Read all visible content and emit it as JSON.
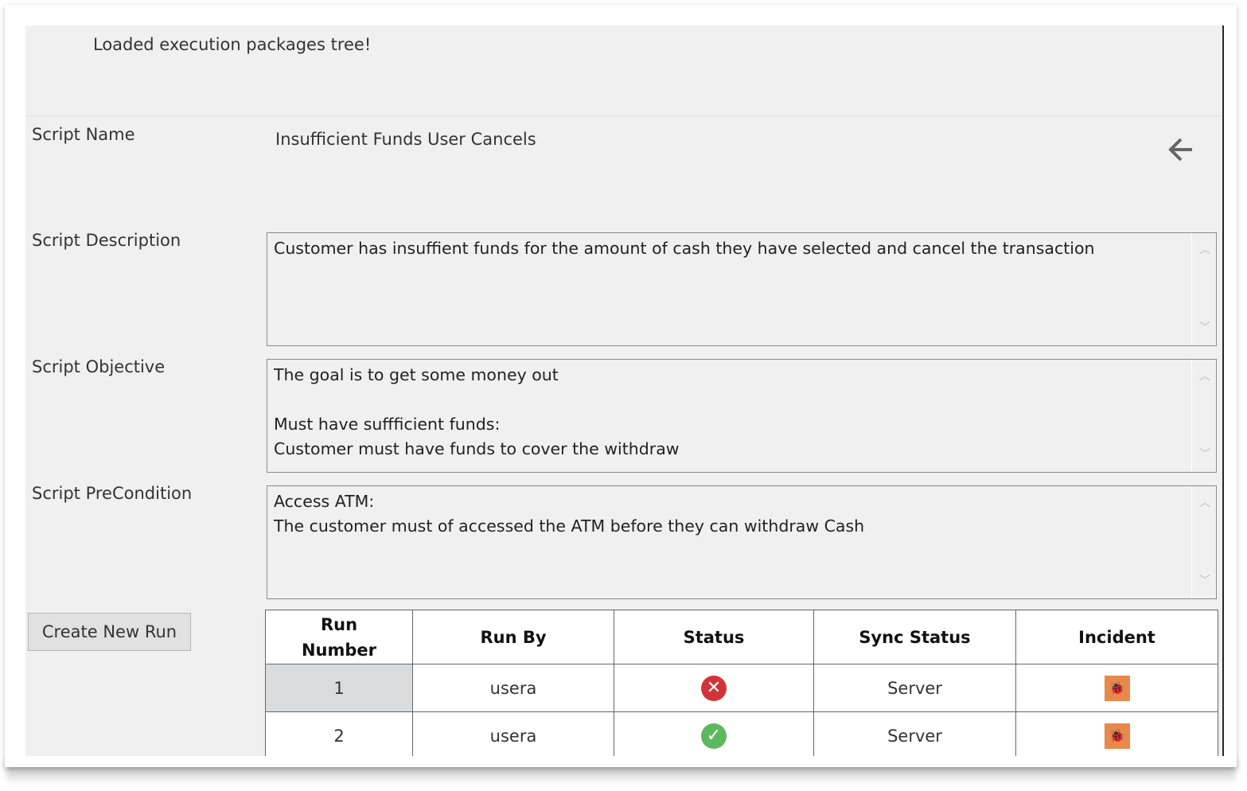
{
  "status_message": "Loaded execution packages tree!",
  "fields": {
    "name_label": "Script Name",
    "name_value": "Insufficient Funds User Cancels",
    "description_label": "Script Description",
    "description_value": "Customer has insuffient funds for the amount of cash they have selected and cancel the transaction",
    "objective_label": "Script Objective",
    "objective_value": "The goal is to get some money out\n\nMust have suffficient funds:\nCustomer must have funds to cover the withdraw",
    "precondition_label": "Script PreCondition",
    "precondition_value": "Access ATM:\nThe customer must of accessed the ATM before they can withdraw Cash"
  },
  "create_run_label": "Create New Run",
  "table": {
    "headers": [
      "Run Number",
      "Run By",
      "Status",
      "Sync Status",
      "Incident"
    ],
    "rows": [
      {
        "run": "1",
        "by": "usera",
        "status": "failed",
        "status_glyph": "✕",
        "status_color": "#d13438",
        "sync": "Server",
        "incident": "bug-icon"
      },
      {
        "run": "2",
        "by": "usera",
        "status": "passed",
        "status_glyph": "✓",
        "status_color": "#5cb85c",
        "sync": "Server",
        "incident": "bug-icon"
      }
    ]
  },
  "colors": {
    "incident": "#e8894a",
    "background": "#f0f0f0"
  }
}
